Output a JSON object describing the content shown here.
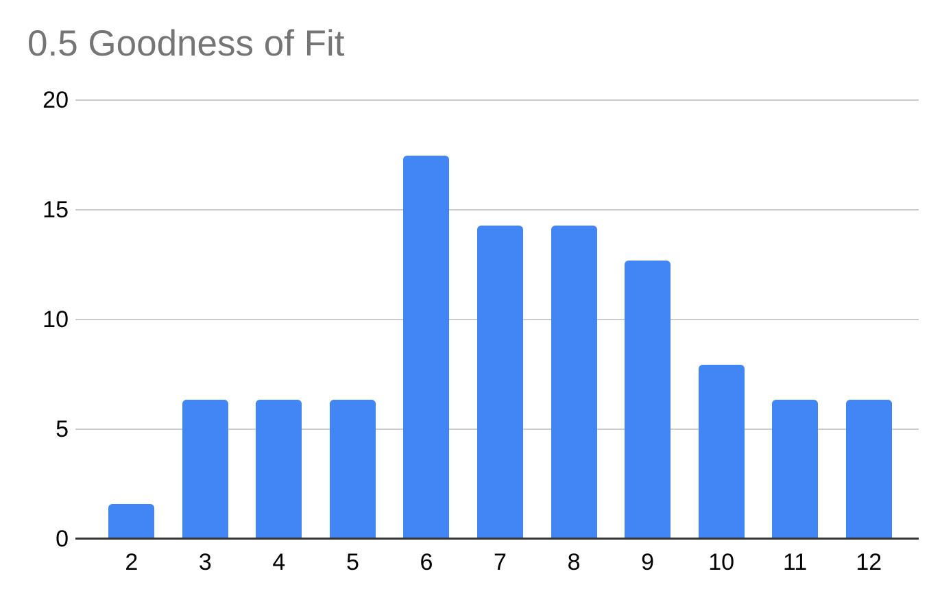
{
  "title": "0.5 Goodness of Fit",
  "colors": {
    "bar": "#4285F4",
    "gridline": "#cccccc",
    "axis_line": "#333333",
    "title_text": "#757575",
    "tick_text": "#000000",
    "background": "#ffffff"
  },
  "chart_data": {
    "type": "bar",
    "title": "0.5 Goodness of Fit",
    "categories": [
      "2",
      "3",
      "4",
      "5",
      "6",
      "7",
      "8",
      "9",
      "10",
      "11",
      "12"
    ],
    "values": [
      1.59,
      6.35,
      6.35,
      6.35,
      17.46,
      14.29,
      14.29,
      12.7,
      7.94,
      6.35,
      6.35
    ],
    "xlabel": "",
    "ylabel": "",
    "ylim": [
      0,
      20
    ],
    "yticks": [
      0,
      5,
      10,
      15,
      20
    ],
    "grid": true,
    "legend": "none",
    "bar_color": "#4285F4"
  }
}
